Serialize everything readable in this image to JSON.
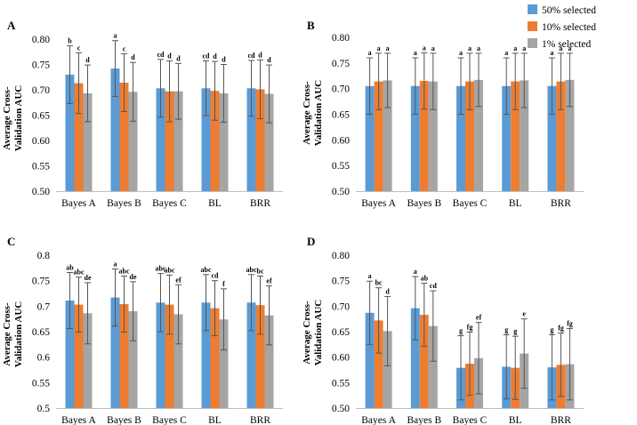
{
  "legend": [
    {
      "label": "50% selected",
      "color": "#5B9BD5"
    },
    {
      "label": "10% selected",
      "color": "#ED7D31"
    },
    {
      "label": "1% selected",
      "color": "#A5A5A5"
    }
  ],
  "chart_data": [
    {
      "type": "bar",
      "panel": "A",
      "categories": [
        "Bayes A",
        "Bayes B",
        "Bayes C",
        "BL",
        "BRR"
      ],
      "ylabel_lines": [
        "Average Cross-",
        "Validation AUC"
      ],
      "ylim": [
        0.5,
        0.8
      ],
      "yticks": [
        "0.50",
        "0.55",
        "0.60",
        "0.65",
        "0.70",
        "0.75",
        "0.80"
      ],
      "series": [
        {
          "name": "50% selected",
          "values": [
            0.73,
            0.742,
            0.703,
            0.703,
            0.703
          ],
          "errors": [
            0.057,
            0.055,
            0.057,
            0.054,
            0.055
          ],
          "letters": [
            "b",
            "a",
            "cd",
            "cd",
            "cd"
          ]
        },
        {
          "name": "10% selected",
          "values": [
            0.713,
            0.714,
            0.697,
            0.698,
            0.701
          ],
          "errors": [
            0.06,
            0.057,
            0.06,
            0.058,
            0.058
          ],
          "letters": [
            "c",
            "c",
            "d",
            "d",
            "d"
          ]
        },
        {
          "name": "1% selected",
          "values": [
            0.693,
            0.696,
            0.697,
            0.693,
            0.692
          ],
          "errors": [
            0.056,
            0.058,
            0.055,
            0.057,
            0.057
          ],
          "letters": [
            "d",
            "d",
            "d",
            "d",
            "d"
          ]
        }
      ]
    },
    {
      "type": "bar",
      "panel": "B",
      "categories": [
        "Bayes A",
        "Bayes B",
        "Bayes C",
        "BL",
        "BRR"
      ],
      "ylabel_lines": [
        "Average Cross-",
        "Validation AUC"
      ],
      "ylim": [
        0.5,
        0.8
      ],
      "yticks": [
        "0.50",
        "0.55",
        "0.60",
        "0.65",
        "0.70",
        "0.75",
        "0.80"
      ],
      "series": [
        {
          "name": "50% selected",
          "values": [
            0.705,
            0.705,
            0.705,
            0.705,
            0.705
          ],
          "errors": [
            0.055,
            0.055,
            0.055,
            0.055,
            0.055
          ],
          "letters": [
            "a",
            "a",
            "a",
            "a",
            "a"
          ]
        },
        {
          "name": "10% selected",
          "values": [
            0.714,
            0.715,
            0.714,
            0.714,
            0.714
          ],
          "errors": [
            0.055,
            0.055,
            0.055,
            0.055,
            0.055
          ],
          "letters": [
            "a",
            "a",
            "a",
            "a",
            "a"
          ]
        },
        {
          "name": "1% selected",
          "values": [
            0.716,
            0.714,
            0.717,
            0.716,
            0.717
          ],
          "errors": [
            0.053,
            0.055,
            0.052,
            0.053,
            0.052
          ],
          "letters": [
            "a",
            "a",
            "a",
            "a",
            "a"
          ]
        }
      ]
    },
    {
      "type": "bar",
      "panel": "C",
      "categories": [
        "Bayes A",
        "Bayes B",
        "Bayes C",
        "BL",
        "BRR"
      ],
      "ylabel_lines": [
        "Average Cross-",
        "Validation AUC"
      ],
      "ylim": [
        0.5,
        0.8
      ],
      "yticks": [
        "0.5",
        "0.55",
        "0.6",
        "0.65",
        "0.7",
        "0.75",
        "0.8"
      ],
      "series": [
        {
          "name": "50% selected",
          "values": [
            0.711,
            0.717,
            0.707,
            0.707,
            0.707
          ],
          "errors": [
            0.055,
            0.056,
            0.057,
            0.055,
            0.055
          ],
          "letters": [
            "ab",
            "a",
            "abc",
            "abc",
            "abc"
          ]
        },
        {
          "name": "10% selected",
          "values": [
            0.703,
            0.704,
            0.703,
            0.696,
            0.702
          ],
          "errors": [
            0.054,
            0.055,
            0.058,
            0.054,
            0.057
          ],
          "letters": [
            "abc",
            "abc",
            "abc",
            "cd",
            "bc"
          ]
        },
        {
          "name": "1% selected",
          "values": [
            0.686,
            0.69,
            0.684,
            0.674,
            0.682
          ],
          "errors": [
            0.06,
            0.058,
            0.058,
            0.06,
            0.058
          ],
          "letters": [
            "de",
            "de",
            "ef",
            "f",
            "ef"
          ]
        }
      ]
    },
    {
      "type": "bar",
      "panel": "D",
      "categories": [
        "Bayes A",
        "Bayes B",
        "Bayes C",
        "BL",
        "BRR"
      ],
      "ylabel_lines": [
        "Average Cross-",
        "Validation AUC"
      ],
      "ylim": [
        0.5,
        0.8
      ],
      "yticks": [
        "0.50",
        "0.55",
        "0.60",
        "0.65",
        "0.70",
        "0.75",
        "0.80"
      ],
      "series": [
        {
          "name": "50% selected",
          "values": [
            0.687,
            0.696,
            0.579,
            0.581,
            0.58
          ],
          "errors": [
            0.062,
            0.062,
            0.063,
            0.063,
            0.064
          ],
          "letters": [
            "a",
            "a",
            "g",
            "g",
            "g"
          ]
        },
        {
          "name": "10% selected",
          "values": [
            0.672,
            0.683,
            0.587,
            0.579,
            0.585
          ],
          "errors": [
            0.064,
            0.062,
            0.062,
            0.062,
            0.062
          ],
          "letters": [
            "bc",
            "ab",
            "fg",
            "g",
            "fg"
          ]
        },
        {
          "name": "1% selected",
          "values": [
            0.651,
            0.661,
            0.598,
            0.607,
            0.586
          ],
          "errors": [
            0.068,
            0.069,
            0.07,
            0.068,
            0.07
          ],
          "letters": [
            "d",
            "cd",
            "ef",
            "e",
            "fg"
          ]
        }
      ]
    }
  ]
}
